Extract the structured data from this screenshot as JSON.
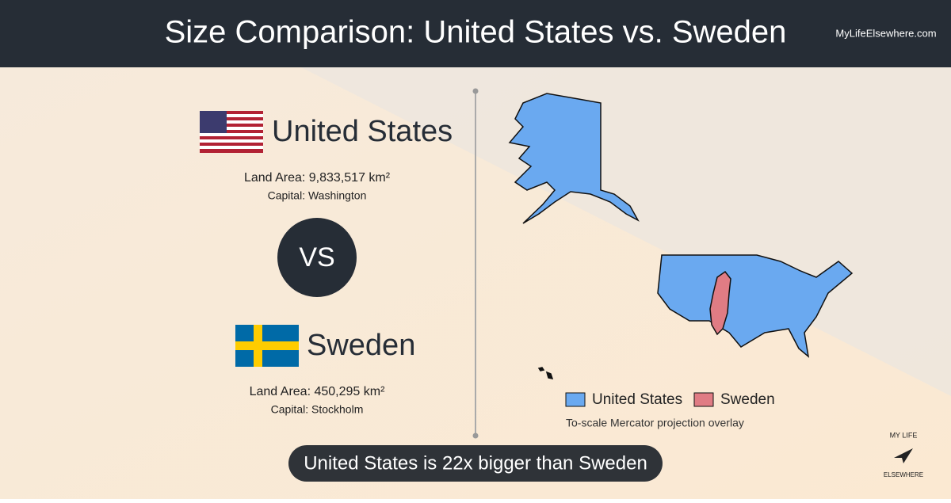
{
  "header": {
    "title": "Size Comparison: United States vs. Sweden",
    "site": "MyLifeElsewhere.com"
  },
  "countries": [
    {
      "name": "United States",
      "land_area": "Land Area: 9,833,517 km²",
      "capital": "Capital: Washington"
    },
    {
      "name": "Sweden",
      "land_area": "Land Area: 450,295 km²",
      "capital": "Capital: Stockholm"
    }
  ],
  "vs": "VS",
  "map": {
    "legend": [
      "United States",
      "Sweden"
    ],
    "note": "To-scale Mercator projection overlay"
  },
  "footer": "United States is 22x bigger than Sweden",
  "logo": {
    "top": "MY LIFE",
    "bottom": "ELSEWHERE"
  }
}
